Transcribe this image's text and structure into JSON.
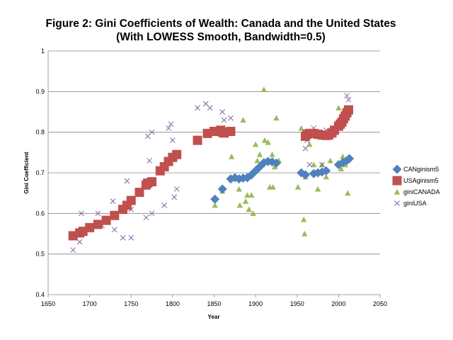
{
  "chart_data": {
    "type": "scatter",
    "title": "Figure 2: Gini Coefficients of Wealth: Canada and the United States",
    "subtitle": "(With LOWESS Smooth, Bandwidth=0.5)",
    "xlabel": "Year",
    "ylabel": "Gini Coefficient",
    "xlim": [
      1650,
      2050
    ],
    "ylim": [
      0.4,
      1.0
    ],
    "x_ticks": [
      1650,
      1700,
      1750,
      1800,
      1850,
      1900,
      1950,
      2000,
      2050
    ],
    "y_ticks": [
      0.4,
      0.5,
      0.6,
      0.7,
      0.8,
      0.9,
      1
    ],
    "y_tick_labels": [
      "0.4",
      "0.5",
      "0.6",
      "0.7",
      "0.8",
      "0.9",
      "1"
    ],
    "grid": "horizontal",
    "legend_position": "right",
    "series": [
      {
        "name": "CANginism5",
        "marker": "diamond",
        "color": "#4F81BD",
        "points": [
          [
            1851,
            0.635
          ],
          [
            1860,
            0.66
          ],
          [
            1870,
            0.685
          ],
          [
            1875,
            0.688
          ],
          [
            1880,
            0.685
          ],
          [
            1885,
            0.687
          ],
          [
            1890,
            0.688
          ],
          [
            1895,
            0.695
          ],
          [
            1900,
            0.705
          ],
          [
            1905,
            0.715
          ],
          [
            1910,
            0.725
          ],
          [
            1915,
            0.728
          ],
          [
            1920,
            0.727
          ],
          [
            1925,
            0.724
          ],
          [
            1955,
            0.7
          ],
          [
            1960,
            0.695
          ],
          [
            1970,
            0.698
          ],
          [
            1975,
            0.7
          ],
          [
            1980,
            0.702
          ],
          [
            1985,
            0.705
          ],
          [
            2000,
            0.72
          ],
          [
            2005,
            0.725
          ],
          [
            2010,
            0.73
          ],
          [
            2013,
            0.735
          ]
        ]
      },
      {
        "name": "USAginism5",
        "marker": "square",
        "color": "#C0504D",
        "points": [
          [
            1680,
            0.545
          ],
          [
            1688,
            0.552
          ],
          [
            1692,
            0.556
          ],
          [
            1700,
            0.565
          ],
          [
            1710,
            0.573
          ],
          [
            1720,
            0.583
          ],
          [
            1730,
            0.595
          ],
          [
            1740,
            0.61
          ],
          [
            1745,
            0.62
          ],
          [
            1750,
            0.632
          ],
          [
            1760,
            0.652
          ],
          [
            1768,
            0.67
          ],
          [
            1770,
            0.675
          ],
          [
            1775,
            0.678
          ],
          [
            1785,
            0.705
          ],
          [
            1790,
            0.715
          ],
          [
            1795,
            0.728
          ],
          [
            1800,
            0.738
          ],
          [
            1805,
            0.745
          ],
          [
            1830,
            0.78
          ],
          [
            1842,
            0.797
          ],
          [
            1850,
            0.802
          ],
          [
            1858,
            0.805
          ],
          [
            1860,
            0.8
          ],
          [
            1862,
            0.798
          ],
          [
            1870,
            0.802
          ],
          [
            1960,
            0.79
          ],
          [
            1962,
            0.795
          ],
          [
            1965,
            0.797
          ],
          [
            1970,
            0.797
          ],
          [
            1975,
            0.795
          ],
          [
            1980,
            0.793
          ],
          [
            1985,
            0.792
          ],
          [
            1988,
            0.793
          ],
          [
            1992,
            0.798
          ],
          [
            1995,
            0.805
          ],
          [
            2000,
            0.815
          ],
          [
            2002,
            0.82
          ],
          [
            2004,
            0.825
          ],
          [
            2006,
            0.833
          ],
          [
            2008,
            0.84
          ],
          [
            2010,
            0.848
          ],
          [
            2012,
            0.855
          ]
        ]
      },
      {
        "name": "giniCANADA",
        "marker": "triangle",
        "color": "#9BBB59",
        "points": [
          [
            1851,
            0.62
          ],
          [
            1860,
            0.655
          ],
          [
            1871,
            0.74
          ],
          [
            1875,
            0.69
          ],
          [
            1880,
            0.66
          ],
          [
            1881,
            0.62
          ],
          [
            1885,
            0.83
          ],
          [
            1888,
            0.63
          ],
          [
            1890,
            0.645
          ],
          [
            1891,
            0.69
          ],
          [
            1892,
            0.61
          ],
          [
            1895,
            0.645
          ],
          [
            1897,
            0.6
          ],
          [
            1900,
            0.77
          ],
          [
            1902,
            0.73
          ],
          [
            1905,
            0.745
          ],
          [
            1908,
            0.72
          ],
          [
            1910,
            0.905
          ],
          [
            1911,
            0.78
          ],
          [
            1913,
            0.73
          ],
          [
            1915,
            0.775
          ],
          [
            1917,
            0.665
          ],
          [
            1920,
            0.745
          ],
          [
            1921,
            0.665
          ],
          [
            1923,
            0.715
          ],
          [
            1925,
            0.835
          ],
          [
            1928,
            0.73
          ],
          [
            1951,
            0.665
          ],
          [
            1955,
            0.81
          ],
          [
            1958,
            0.585
          ],
          [
            1959,
            0.55
          ],
          [
            1960,
            0.69
          ],
          [
            1965,
            0.77
          ],
          [
            1970,
            0.72
          ],
          [
            1975,
            0.66
          ],
          [
            1980,
            0.72
          ],
          [
            1985,
            0.69
          ],
          [
            1990,
            0.73
          ],
          [
            1995,
            0.8
          ],
          [
            2000,
            0.86
          ],
          [
            2003,
            0.71
          ],
          [
            2005,
            0.74
          ],
          [
            2008,
            0.72
          ],
          [
            2011,
            0.65
          ]
        ]
      },
      {
        "name": "giniUSA",
        "marker": "x",
        "color": "#8064A2",
        "points": [
          [
            1680,
            0.51
          ],
          [
            1688,
            0.53
          ],
          [
            1690,
            0.6
          ],
          [
            1710,
            0.6
          ],
          [
            1715,
            0.57
          ],
          [
            1728,
            0.63
          ],
          [
            1730,
            0.56
          ],
          [
            1740,
            0.54
          ],
          [
            1745,
            0.68
          ],
          [
            1750,
            0.54
          ],
          [
            1750,
            0.61
          ],
          [
            1768,
            0.59
          ],
          [
            1770,
            0.79
          ],
          [
            1772,
            0.73
          ],
          [
            1775,
            0.8
          ],
          [
            1775,
            0.6
          ],
          [
            1790,
            0.62
          ],
          [
            1795,
            0.81
          ],
          [
            1798,
            0.82
          ],
          [
            1800,
            0.78
          ],
          [
            1802,
            0.64
          ],
          [
            1805,
            0.66
          ],
          [
            1830,
            0.86
          ],
          [
            1840,
            0.87
          ],
          [
            1845,
            0.86
          ],
          [
            1860,
            0.85
          ],
          [
            1862,
            0.83
          ],
          [
            1870,
            0.835
          ],
          [
            1960,
            0.76
          ],
          [
            1962,
            0.78
          ],
          [
            1965,
            0.72
          ],
          [
            1970,
            0.81
          ],
          [
            1975,
            0.8
          ],
          [
            1980,
            0.72
          ],
          [
            1985,
            0.805
          ],
          [
            1990,
            0.8
          ],
          [
            1995,
            0.8
          ],
          [
            2000,
            0.81
          ],
          [
            2001,
            0.82
          ],
          [
            2005,
            0.83
          ],
          [
            2007,
            0.84
          ],
          [
            2010,
            0.89
          ],
          [
            2012,
            0.88
          ]
        ]
      }
    ]
  }
}
